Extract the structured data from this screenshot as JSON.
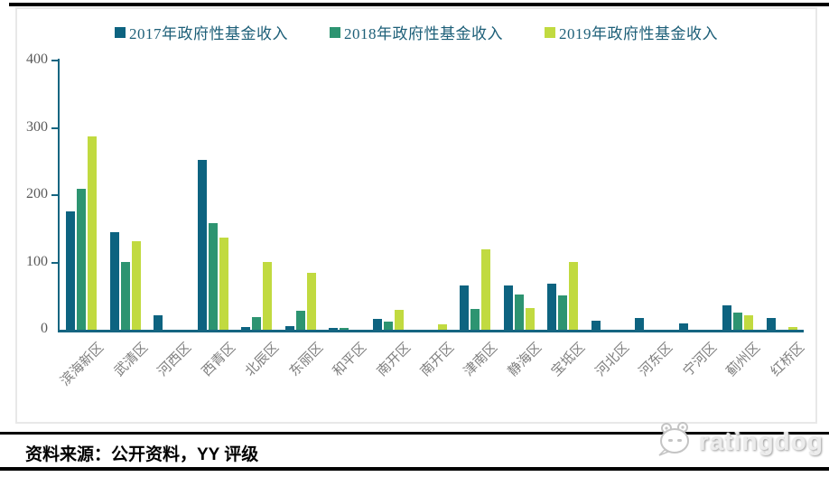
{
  "footer": {
    "source_note": "资料来源：公开资料，YY 评级",
    "brand": "ratingdog"
  },
  "chart_data": {
    "type": "bar",
    "title": "",
    "xlabel": "",
    "ylabel": "",
    "ylim": [
      0,
      400
    ],
    "yticks": [
      0,
      100,
      200,
      300,
      400
    ],
    "grid": false,
    "legend_position": "top",
    "axis_color": "#156581",
    "tick_label_color": "#5a5a5a",
    "x_label_color": "#7f7f7f",
    "categories": [
      "滨海新区",
      "武清区",
      "河西区",
      "西青区",
      "北辰区",
      "东丽区",
      "和平区",
      "南开区",
      "南开区",
      "津南区",
      "静海区",
      "宝坻区",
      "河北区",
      "河东区",
      "宁河区",
      "蓟州区",
      "红桥区"
    ],
    "series": [
      {
        "name": "2017年政府性基金收入",
        "color": "#0d6380",
        "values": [
          176,
          145,
          22,
          252,
          4,
          6,
          3,
          16,
          0,
          66,
          66,
          69,
          13,
          18,
          9,
          36,
          18
        ]
      },
      {
        "name": "2018年政府性基金收入",
        "color": "#2d9471",
        "values": [
          210,
          100,
          0,
          158,
          19,
          28,
          3,
          12,
          0,
          31,
          52,
          51,
          0,
          0,
          0,
          25,
          0
        ]
      },
      {
        "name": "2019年政府性基金收入",
        "color": "#c1da40",
        "values": [
          287,
          132,
          0,
          137,
          100,
          84,
          0,
          30,
          8,
          119,
          32,
          101,
          0,
          0,
          0,
          22,
          4
        ]
      }
    ]
  }
}
